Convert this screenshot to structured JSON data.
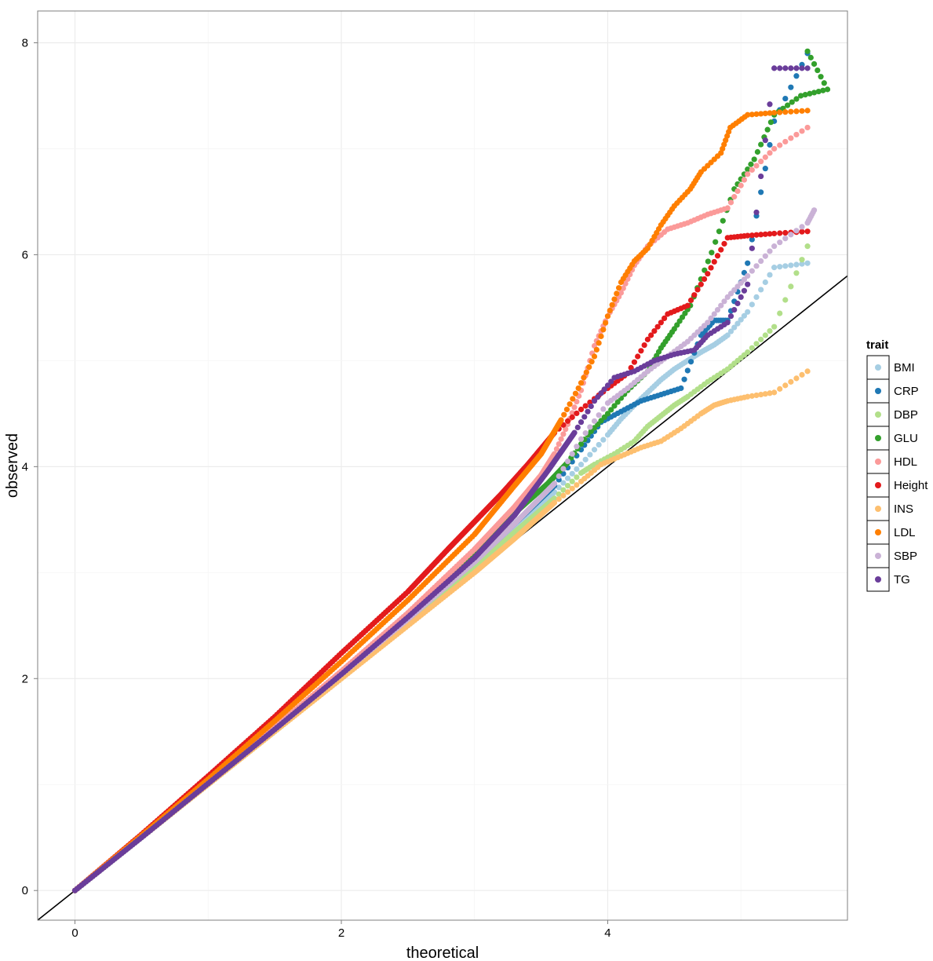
{
  "chart_data": {
    "type": "scatter",
    "title": "",
    "xlabel": "theoretical",
    "ylabel": "observed",
    "xlim": [
      -0.28,
      5.8
    ],
    "ylim": [
      -0.28,
      8.3
    ],
    "xticks": [
      0,
      2,
      4
    ],
    "yticks": [
      0,
      2,
      4,
      6,
      8
    ],
    "x_tick_labels": [
      "0",
      "2",
      "4"
    ],
    "y_tick_labels": [
      "0",
      "2",
      "4",
      "6",
      "8"
    ],
    "grid": true,
    "reference_line": {
      "slope": 1,
      "intercept": 0
    },
    "legend": {
      "title": "trait",
      "position": "right"
    },
    "series": [
      {
        "name": "BMI",
        "color": "#a6cee3",
        "points": [
          [
            0,
            0
          ],
          [
            0.5,
            0.5
          ],
          [
            1,
            1.01
          ],
          [
            1.5,
            1.52
          ],
          [
            2,
            2.04
          ],
          [
            2.5,
            2.56
          ],
          [
            3,
            3.1
          ],
          [
            3.3,
            3.42
          ],
          [
            3.6,
            3.76
          ],
          [
            3.8,
            4.02
          ],
          [
            4,
            4.3
          ],
          [
            4.1,
            4.45
          ],
          [
            4.2,
            4.58
          ],
          [
            4.3,
            4.7
          ],
          [
            4.4,
            4.82
          ],
          [
            4.5,
            4.92
          ],
          [
            4.6,
            5.0
          ],
          [
            4.7,
            5.08
          ],
          [
            4.8,
            5.15
          ],
          [
            4.9,
            5.24
          ],
          [
            5.05,
            5.46
          ],
          [
            5.25,
            5.88
          ],
          [
            5.5,
            5.92
          ]
        ]
      },
      {
        "name": "CRP",
        "color": "#1f78b4",
        "points": [
          [
            0,
            0
          ],
          [
            0.5,
            0.5
          ],
          [
            1,
            1.01
          ],
          [
            1.5,
            1.52
          ],
          [
            2,
            2.04
          ],
          [
            2.5,
            2.56
          ],
          [
            3,
            3.1
          ],
          [
            3.3,
            3.46
          ],
          [
            3.6,
            3.82
          ],
          [
            3.8,
            4.16
          ],
          [
            3.95,
            4.42
          ],
          [
            4.1,
            4.52
          ],
          [
            4.25,
            4.62
          ],
          [
            4.4,
            4.68
          ],
          [
            4.55,
            4.74
          ],
          [
            4.7,
            5.24
          ],
          [
            4.8,
            5.38
          ],
          [
            4.9,
            5.38
          ],
          [
            5.05,
            5.92
          ],
          [
            5.25,
            7.26
          ],
          [
            5.5,
            7.9
          ]
        ]
      },
      {
        "name": "DBP",
        "color": "#b2df8a",
        "points": [
          [
            0,
            0
          ],
          [
            0.5,
            0.5
          ],
          [
            1,
            1.0
          ],
          [
            1.5,
            1.5
          ],
          [
            2,
            2.01
          ],
          [
            2.5,
            2.52
          ],
          [
            3,
            3.04
          ],
          [
            3.3,
            3.38
          ],
          [
            3.6,
            3.7
          ],
          [
            3.8,
            3.94
          ],
          [
            3.9,
            4.02
          ],
          [
            4.05,
            4.12
          ],
          [
            4.2,
            4.24
          ],
          [
            4.3,
            4.38
          ],
          [
            4.4,
            4.48
          ],
          [
            4.5,
            4.58
          ],
          [
            4.6,
            4.66
          ],
          [
            4.75,
            4.8
          ],
          [
            4.9,
            4.92
          ],
          [
            5.05,
            5.08
          ],
          [
            5.25,
            5.32
          ],
          [
            5.5,
            6.08
          ]
        ]
      },
      {
        "name": "GLU",
        "color": "#33a02c",
        "points": [
          [
            0,
            0
          ],
          [
            0.5,
            0.51
          ],
          [
            1,
            1.02
          ],
          [
            1.5,
            1.54
          ],
          [
            2,
            2.06
          ],
          [
            2.5,
            2.6
          ],
          [
            3,
            3.18
          ],
          [
            3.3,
            3.56
          ],
          [
            3.55,
            3.84
          ],
          [
            3.7,
            4.04
          ],
          [
            3.85,
            4.3
          ],
          [
            4.0,
            4.5
          ],
          [
            4.15,
            4.72
          ],
          [
            4.3,
            4.9
          ],
          [
            4.4,
            5.12
          ],
          [
            4.5,
            5.3
          ],
          [
            4.62,
            5.52
          ],
          [
            4.78,
            6.02
          ],
          [
            4.95,
            6.62
          ],
          [
            5.1,
            6.9
          ],
          [
            5.25,
            7.32
          ],
          [
            5.45,
            7.5
          ],
          [
            5.65,
            7.56
          ],
          [
            5.5,
            7.92
          ]
        ]
      },
      {
        "name": "HDL",
        "color": "#fb9a99",
        "points": [
          [
            0,
            0
          ],
          [
            0.5,
            0.51
          ],
          [
            1,
            1.02
          ],
          [
            1.5,
            1.54
          ],
          [
            2,
            2.07
          ],
          [
            2.5,
            2.62
          ],
          [
            3,
            3.22
          ],
          [
            3.3,
            3.62
          ],
          [
            3.5,
            3.92
          ],
          [
            3.6,
            4.12
          ],
          [
            3.7,
            4.4
          ],
          [
            3.8,
            4.72
          ],
          [
            3.9,
            5.14
          ],
          [
            4.0,
            5.42
          ],
          [
            4.1,
            5.64
          ],
          [
            4.2,
            5.9
          ],
          [
            4.3,
            6.08
          ],
          [
            4.45,
            6.24
          ],
          [
            4.6,
            6.3
          ],
          [
            4.75,
            6.38
          ],
          [
            4.9,
            6.44
          ],
          [
            5.05,
            6.76
          ],
          [
            5.25,
            7.0
          ],
          [
            5.5,
            7.2
          ]
        ]
      },
      {
        "name": "Height",
        "color": "#e31a1c",
        "points": [
          [
            0,
            0
          ],
          [
            0.5,
            0.53
          ],
          [
            1,
            1.08
          ],
          [
            1.5,
            1.64
          ],
          [
            2,
            2.24
          ],
          [
            2.5,
            2.82
          ],
          [
            2.8,
            3.22
          ],
          [
            3,
            3.48
          ],
          [
            3.2,
            3.74
          ],
          [
            3.4,
            4.02
          ],
          [
            3.6,
            4.32
          ],
          [
            3.8,
            4.54
          ],
          [
            4.0,
            4.74
          ],
          [
            4.15,
            4.88
          ],
          [
            4.3,
            5.2
          ],
          [
            4.45,
            5.44
          ],
          [
            4.6,
            5.52
          ],
          [
            4.75,
            5.82
          ],
          [
            4.9,
            6.16
          ],
          [
            5.05,
            6.18
          ],
          [
            5.25,
            6.2
          ],
          [
            5.5,
            6.22
          ]
        ]
      },
      {
        "name": "INS",
        "color": "#fdbf6f",
        "points": [
          [
            0,
            0
          ],
          [
            0.5,
            0.5
          ],
          [
            1,
            1.0
          ],
          [
            1.5,
            1.5
          ],
          [
            2,
            2.0
          ],
          [
            2.5,
            2.5
          ],
          [
            3,
            3.0
          ],
          [
            3.3,
            3.32
          ],
          [
            3.6,
            3.66
          ],
          [
            3.8,
            3.86
          ],
          [
            3.95,
            4.02
          ],
          [
            4.1,
            4.1
          ],
          [
            4.25,
            4.18
          ],
          [
            4.4,
            4.24
          ],
          [
            4.55,
            4.36
          ],
          [
            4.7,
            4.5
          ],
          [
            4.8,
            4.58
          ],
          [
            4.9,
            4.62
          ],
          [
            5.05,
            4.66
          ],
          [
            5.25,
            4.7
          ],
          [
            5.5,
            4.9
          ]
        ]
      },
      {
        "name": "LDL",
        "color": "#ff7f00",
        "points": [
          [
            0,
            0
          ],
          [
            0.5,
            0.52
          ],
          [
            1,
            1.05
          ],
          [
            1.5,
            1.6
          ],
          [
            2,
            2.16
          ],
          [
            2.5,
            2.74
          ],
          [
            3,
            3.36
          ],
          [
            3.3,
            3.82
          ],
          [
            3.5,
            4.12
          ],
          [
            3.65,
            4.44
          ],
          [
            3.78,
            4.74
          ],
          [
            3.9,
            5.04
          ],
          [
            4.0,
            5.42
          ],
          [
            4.1,
            5.74
          ],
          [
            4.2,
            5.94
          ],
          [
            4.3,
            6.06
          ],
          [
            4.4,
            6.28
          ],
          [
            4.5,
            6.46
          ],
          [
            4.62,
            6.62
          ],
          [
            4.7,
            6.78
          ],
          [
            4.85,
            6.96
          ],
          [
            4.92,
            7.2
          ],
          [
            5.05,
            7.32
          ],
          [
            5.25,
            7.34
          ],
          [
            5.5,
            7.36
          ]
        ]
      },
      {
        "name": "SBP",
        "color": "#cab2d6",
        "points": [
          [
            0,
            0
          ],
          [
            0.5,
            0.5
          ],
          [
            1,
            1.01
          ],
          [
            1.5,
            1.52
          ],
          [
            2,
            2.04
          ],
          [
            2.5,
            2.56
          ],
          [
            3,
            3.1
          ],
          [
            3.3,
            3.46
          ],
          [
            3.6,
            3.84
          ],
          [
            3.8,
            4.26
          ],
          [
            4.0,
            4.6
          ],
          [
            4.15,
            4.74
          ],
          [
            4.3,
            4.9
          ],
          [
            4.45,
            5.04
          ],
          [
            4.6,
            5.18
          ],
          [
            4.75,
            5.36
          ],
          [
            4.9,
            5.6
          ],
          [
            5.05,
            5.8
          ],
          [
            5.25,
            6.08
          ],
          [
            5.5,
            6.3
          ],
          [
            5.55,
            6.42
          ]
        ]
      },
      {
        "name": "TG",
        "color": "#6a3d9a",
        "points": [
          [
            0,
            0
          ],
          [
            0.5,
            0.5
          ],
          [
            1,
            1.01
          ],
          [
            1.5,
            1.52
          ],
          [
            2,
            2.04
          ],
          [
            2.5,
            2.58
          ],
          [
            3,
            3.14
          ],
          [
            3.3,
            3.54
          ],
          [
            3.55,
            3.96
          ],
          [
            3.75,
            4.32
          ],
          [
            3.9,
            4.62
          ],
          [
            4.05,
            4.84
          ],
          [
            4.2,
            4.9
          ],
          [
            4.35,
            5.0
          ],
          [
            4.5,
            5.06
          ],
          [
            4.65,
            5.1
          ],
          [
            4.75,
            5.24
          ],
          [
            4.9,
            5.36
          ],
          [
            5.05,
            5.72
          ],
          [
            5.25,
            7.76
          ],
          [
            5.5,
            7.76
          ]
        ]
      }
    ]
  }
}
